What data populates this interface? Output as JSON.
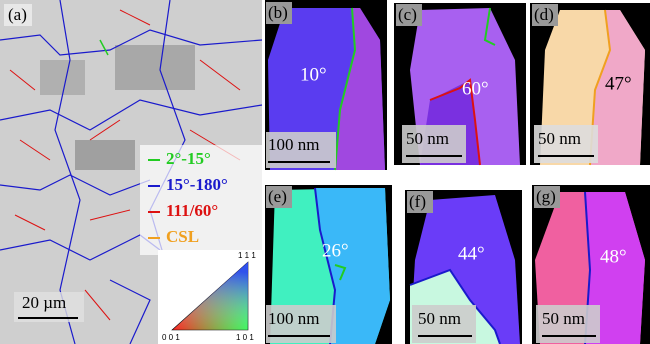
{
  "panels": [
    {
      "label": "(a)",
      "scale_bar": "20 µm"
    },
    {
      "label": "(b)",
      "angle": "10°",
      "scale_bar": "100 nm"
    },
    {
      "label": "(c)",
      "angle": "60°",
      "scale_bar": "50 nm"
    },
    {
      "label": "(d)",
      "angle": "47°",
      "scale_bar": "50 nm"
    },
    {
      "label": "(e)",
      "angle": "26°",
      "scale_bar": "100 nm"
    },
    {
      "label": "(f)",
      "angle": "44°",
      "scale_bar": "50 nm"
    },
    {
      "label": "(g)",
      "angle": "48°",
      "scale_bar": "50 nm"
    }
  ],
  "legend": [
    {
      "text": "2°-15°",
      "color": "#22cc22"
    },
    {
      "text": "15°-180°",
      "color": "#1a1acc"
    },
    {
      "text": "111/60°",
      "color": "#dd1111"
    },
    {
      "text": "CSL",
      "color": "#f0a020"
    }
  ],
  "ipf_triangle": {
    "top": "1 1 1",
    "left": "0 0 1",
    "right": "1 0 1"
  }
}
